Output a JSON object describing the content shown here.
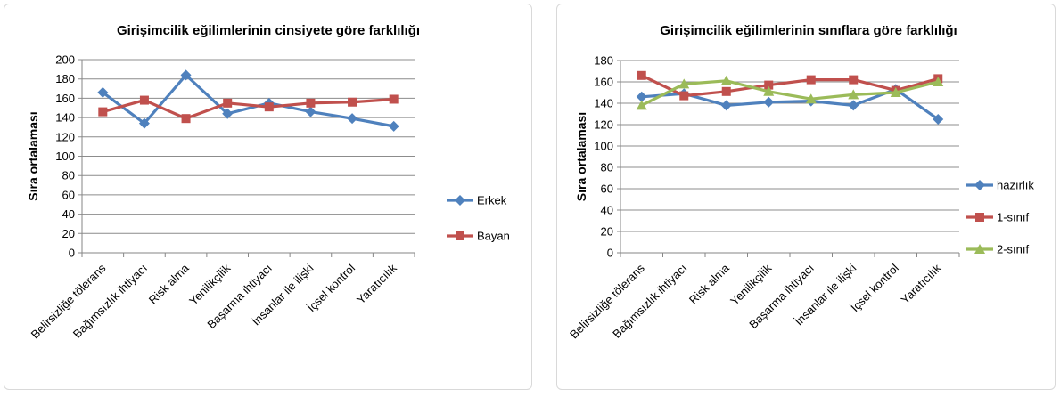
{
  "chart_data": [
    {
      "type": "line",
      "title": "Girişimcilik eğilimlerinin cinsiyete göre farklılığı",
      "xlabel": "",
      "ylabel": "Sıra ortalaması",
      "ylim": [
        0,
        200
      ],
      "yticks": [
        "0",
        "20",
        "40",
        "60",
        "80",
        "100",
        "120",
        "140",
        "160",
        "180",
        "200"
      ],
      "grid": true,
      "legend_position": "right",
      "categories": [
        "Belirsizliğe tölerans",
        "Bağımsızlık ihtiyacı",
        "Risk alma",
        "Yenilikçilik",
        "Başarma ihtiyacı",
        "İnsanlar ile ilişki",
        "İçsel kontrol",
        "Yaratıcılık"
      ],
      "series": [
        {
          "name": "Erkek",
          "color": "#4F81BD",
          "marker": "diamond",
          "values": [
            166,
            134,
            184,
            144,
            155,
            146,
            139,
            131
          ]
        },
        {
          "name": "Bayan",
          "color": "#C0504D",
          "marker": "square",
          "values": [
            146,
            158,
            139,
            155,
            151,
            155,
            156,
            159
          ]
        }
      ]
    },
    {
      "type": "line",
      "title": "Girişimcilik eğilimlerinin sınıflara göre farklılığı",
      "xlabel": "",
      "ylabel": "Sıra ortalaması",
      "ylim": [
        0,
        180
      ],
      "yticks": [
        "0",
        "20",
        "40",
        "60",
        "80",
        "100",
        "120",
        "140",
        "160",
        "180"
      ],
      "grid": true,
      "legend_position": "right",
      "categories": [
        "Belirsizliğe tölerans",
        "Bağımsızlık ihtiyacı",
        "Risk alma",
        "Yenilikçilik",
        "Başarma ihtiyacı",
        "İnsanlar ile ilişki",
        "İçsel kontrol",
        "Yaratıcılık"
      ],
      "series": [
        {
          "name": "hazırlık",
          "color": "#4F81BD",
          "marker": "diamond",
          "values": [
            146,
            149,
            138,
            141,
            142,
            138,
            153,
            125
          ]
        },
        {
          "name": "1-sınıf",
          "color": "#C0504D",
          "marker": "square",
          "values": [
            166,
            147,
            151,
            157,
            162,
            162,
            152,
            163
          ]
        },
        {
          "name": "2-sınıf",
          "color": "#9BBB59",
          "marker": "triangle",
          "values": [
            138,
            158,
            161,
            151,
            144,
            148,
            150,
            160
          ]
        }
      ]
    }
  ]
}
